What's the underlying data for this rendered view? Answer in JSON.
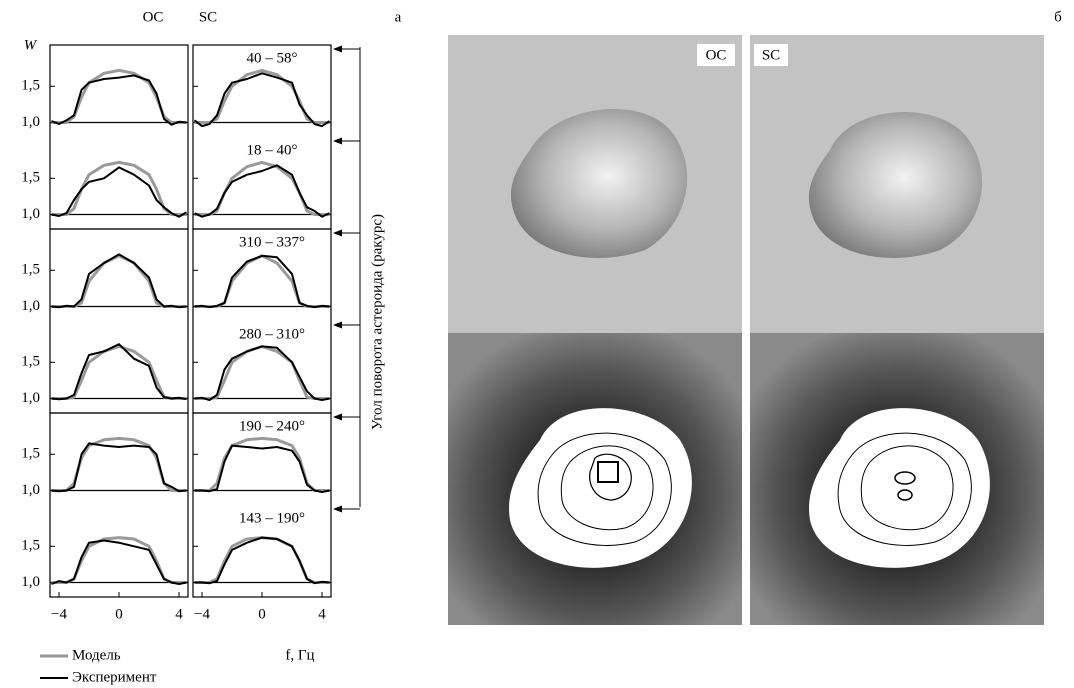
{
  "panel_a": {
    "label": "а",
    "columns": [
      "OC",
      "SC"
    ],
    "y_label": "W",
    "x_label": "f, Гц",
    "side_label": "Угол поворота астероида (ракурс)",
    "legend": [
      "Модель",
      "Эксперимент"
    ],
    "colors": {
      "model": "#9a9a9a",
      "experiment": "#000000"
    },
    "xlim": [
      -4.6,
      4.6
    ],
    "ylim": [
      0.8,
      2.07
    ],
    "xticks": [
      {
        "value": -4,
        "label": "−4"
      },
      0,
      4
    ],
    "yticks": [
      {
        "value": 1.5,
        "label": "1,5"
      },
      {
        "value": 1.0,
        "label": "1,0"
      }
    ],
    "x": [
      -4.5,
      -4,
      -3.5,
      -3,
      -2.5,
      -2,
      -1,
      0,
      1,
      2,
      2.5,
      3,
      3.5,
      4,
      4.5
    ],
    "rows": [
      {
        "angle": "40 – 58°",
        "OC": {
          "model": [
            1,
            1,
            1,
            1.08,
            1.35,
            1.55,
            1.68,
            1.72,
            1.68,
            1.55,
            1.35,
            1.08,
            1,
            1,
            1
          ],
          "experiment": [
            1.02,
            0.98,
            1.03,
            1.1,
            1.45,
            1.55,
            1.6,
            1.62,
            1.65,
            1.58,
            1.4,
            1.05,
            0.97,
            1.01,
            1
          ]
        },
        "SC": {
          "model": [
            1,
            1,
            1,
            1.05,
            1.3,
            1.5,
            1.66,
            1.72,
            1.66,
            1.5,
            1.3,
            1.05,
            1,
            1,
            1
          ],
          "experiment": [
            1.03,
            0.95,
            0.98,
            1.1,
            1.4,
            1.55,
            1.6,
            1.68,
            1.62,
            1.55,
            1.25,
            1.1,
            0.98,
            0.95,
            1.02
          ]
        }
      },
      {
        "angle": "18 – 40°",
        "OC": {
          "model": [
            1,
            1,
            1,
            1.08,
            1.35,
            1.55,
            1.68,
            1.72,
            1.68,
            1.55,
            1.35,
            1.08,
            1,
            1,
            1
          ],
          "experiment": [
            1,
            0.98,
            1.02,
            1.2,
            1.35,
            1.45,
            1.5,
            1.65,
            1.55,
            1.4,
            1.2,
            1.1,
            1.02,
            0.97,
            1.03
          ]
        },
        "SC": {
          "model": [
            1,
            1,
            1,
            1.05,
            1.3,
            1.5,
            1.66,
            1.72,
            1.66,
            1.5,
            1.3,
            1.05,
            1,
            1,
            1
          ],
          "experiment": [
            1.02,
            0.97,
            1,
            1.08,
            1.3,
            1.45,
            1.55,
            1.6,
            1.68,
            1.55,
            1.3,
            1.1,
            1.05,
            0.97,
            1.02
          ]
        }
      },
      {
        "angle": "310 – 337°",
        "OC": {
          "model": [
            1,
            1,
            1,
            1,
            1.05,
            1.35,
            1.6,
            1.7,
            1.6,
            1.35,
            1.05,
            1,
            1,
            1,
            1
          ],
          "experiment": [
            1,
            0.99,
            1.01,
            1,
            1.1,
            1.45,
            1.6,
            1.72,
            1.6,
            1.4,
            1.1,
            1,
            1.01,
            0.99,
            1
          ]
        },
        "SC": {
          "model": [
            1,
            1,
            1,
            1,
            1.05,
            1.35,
            1.6,
            1.7,
            1.6,
            1.35,
            1.05,
            1,
            1,
            1,
            1
          ],
          "experiment": [
            1,
            1.01,
            0.99,
            1.01,
            1.05,
            1.4,
            1.62,
            1.7,
            1.68,
            1.45,
            1.05,
            1.01,
            0.99,
            1.01,
            1
          ]
        }
      },
      {
        "angle": "280 – 310°",
        "OC": {
          "model": [
            1,
            1,
            1,
            1.02,
            1.25,
            1.5,
            1.65,
            1.72,
            1.65,
            1.5,
            1.25,
            1.02,
            1,
            1,
            1
          ],
          "experiment": [
            1,
            0.99,
            1,
            1.05,
            1.35,
            1.6,
            1.65,
            1.75,
            1.55,
            1.45,
            1.15,
            1.02,
            1,
            1.01,
            0.99
          ]
        },
        "SC": {
          "model": [
            1,
            1,
            1,
            1.02,
            1.25,
            1.5,
            1.65,
            1.72,
            1.65,
            1.5,
            1.25,
            1.02,
            1,
            1,
            1
          ],
          "experiment": [
            1,
            1.01,
            0.98,
            1.05,
            1.4,
            1.55,
            1.65,
            1.72,
            1.7,
            1.5,
            1.3,
            1.1,
            1,
            0.98,
            1
          ]
        }
      },
      {
        "angle": "190 – 240°",
        "OC": {
          "model": [
            1,
            1,
            1,
            1.1,
            1.45,
            1.62,
            1.7,
            1.72,
            1.7,
            1.62,
            1.45,
            1.1,
            1,
            1,
            1
          ],
          "experiment": [
            1,
            0.99,
            1,
            1.05,
            1.5,
            1.65,
            1.62,
            1.6,
            1.62,
            1.6,
            1.5,
            1.1,
            1.05,
            0.99,
            1
          ]
        },
        "SC": {
          "model": [
            1,
            1,
            1,
            1.1,
            1.45,
            1.62,
            1.7,
            1.72,
            1.7,
            1.62,
            1.45,
            1.1,
            1,
            1,
            1
          ],
          "experiment": [
            1,
            1,
            0.99,
            1.02,
            1.4,
            1.62,
            1.6,
            1.58,
            1.6,
            1.55,
            1.4,
            1.08,
            1,
            0.98,
            1
          ]
        }
      },
      {
        "angle": "143 – 190°",
        "OC": {
          "model": [
            1,
            1,
            1,
            1.05,
            1.3,
            1.5,
            1.6,
            1.62,
            1.6,
            1.5,
            1.3,
            1.05,
            1,
            1,
            1
          ],
          "experiment": [
            0.98,
            1.02,
            1,
            1.05,
            1.35,
            1.55,
            1.58,
            1.55,
            1.5,
            1.45,
            1.25,
            1.05,
            1,
            0.98,
            1
          ]
        },
        "SC": {
          "model": [
            1,
            1,
            1,
            1.05,
            1.3,
            1.5,
            1.6,
            1.62,
            1.6,
            1.5,
            1.3,
            1.05,
            1,
            1,
            1
          ],
          "experiment": [
            1,
            1,
            0.99,
            1.02,
            1.25,
            1.45,
            1.55,
            1.62,
            1.6,
            1.5,
            1.3,
            1.05,
            0.99,
            1.01,
            1
          ]
        }
      }
    ]
  },
  "panel_b": {
    "label": "б",
    "columns": [
      "OC",
      "SC"
    ]
  }
}
